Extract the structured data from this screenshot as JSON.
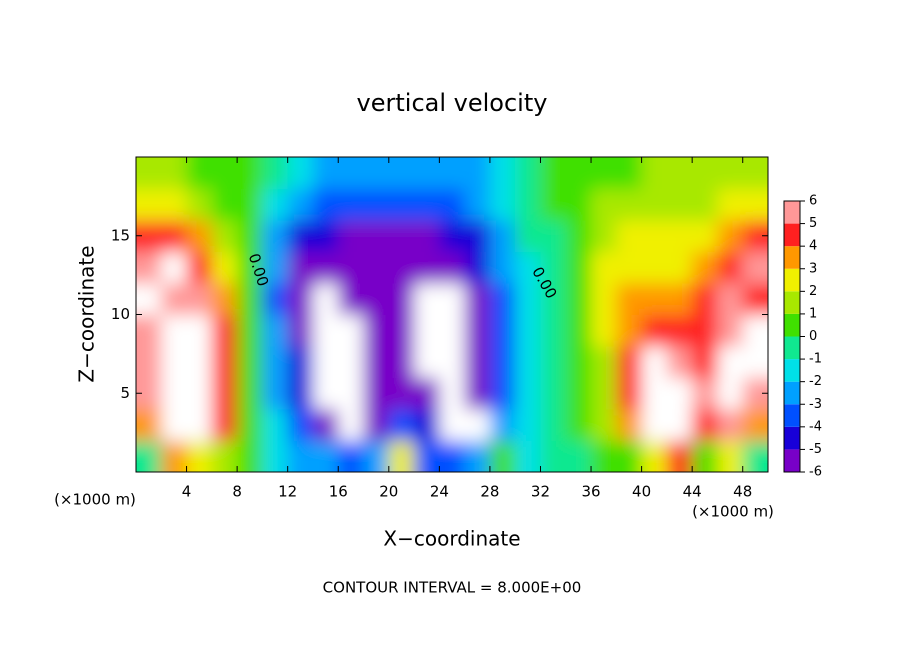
{
  "chart_data": {
    "type": "heatmap",
    "title": "vertical velocity",
    "x_label": "X−coordinate",
    "y_label": "Z−coordinate",
    "x_unit": "(×1000 m)",
    "y_unit": "(×1000 m)",
    "footer": "CONTOUR INTERVAL = 8.000E+00",
    "contour_labels": [
      "0.00",
      "0.00"
    ],
    "xlim": [
      0,
      50
    ],
    "ylim": [
      0,
      20
    ],
    "xticks": [
      4,
      8,
      12,
      16,
      20,
      24,
      28,
      32,
      36,
      40,
      44,
      48
    ],
    "yticks": [
      5,
      10,
      15
    ],
    "x": [
      1,
      3,
      5,
      7,
      9,
      11,
      13,
      15,
      17,
      19,
      21,
      23,
      25,
      27,
      29,
      31,
      33,
      35,
      37,
      39,
      41,
      43,
      45,
      47,
      49
    ],
    "y": [
      1,
      3,
      5,
      7,
      9,
      11,
      13,
      15,
      17,
      19
    ],
    "values": [
      [
        0,
        4,
        3,
        2,
        0.5,
        -1,
        -2,
        -2.5,
        -3,
        -2.5,
        3,
        -3,
        -3,
        -2,
        1,
        -1,
        -0.5,
        0,
        0.5,
        1,
        3,
        5,
        1,
        3,
        0
      ],
      [
        4,
        8,
        8,
        5,
        1,
        -1.5,
        -3,
        -5,
        -8,
        -5,
        -3,
        -4,
        -8,
        -7,
        -2,
        -1,
        -0.5,
        0.5,
        1.5,
        4,
        8,
        8,
        5,
        6,
        4
      ],
      [
        6,
        8,
        8,
        5,
        1,
        -2,
        -4,
        -8,
        -8,
        -5,
        -5,
        -6,
        -7,
        -5,
        -3,
        -1,
        -0.5,
        0.5,
        2,
        5,
        8,
        8,
        6,
        8,
        6
      ],
      [
        6,
        8,
        8,
        5,
        1,
        -2,
        -4,
        -8,
        -8,
        -5,
        -5,
        -8,
        -8,
        -5,
        -3,
        -1.5,
        0,
        0.5,
        2,
        5,
        8,
        6,
        5,
        8,
        8
      ],
      [
        6,
        8,
        7,
        5,
        1,
        -2.5,
        -5,
        -8,
        -8,
        -5,
        -6,
        -8,
        -8,
        -5,
        -3,
        -1.5,
        0,
        1,
        2.5,
        4,
        5,
        5,
        5,
        6,
        8
      ],
      [
        7,
        6,
        6,
        4,
        1,
        -3,
        -5,
        -8,
        -6,
        -5,
        -6,
        -8,
        -8,
        -5,
        -3,
        -1,
        0,
        1,
        3,
        3.5,
        4,
        4,
        5,
        6,
        5
      ],
      [
        6,
        8,
        5,
        3,
        0.5,
        -2.5,
        -5,
        -5,
        -5,
        -5,
        -6,
        -5,
        -5,
        -4.5,
        -2.5,
        -1,
        0,
        1,
        2.5,
        3,
        3,
        3,
        4,
        5,
        6
      ],
      [
        5,
        5,
        4,
        2,
        0.5,
        -2,
        -4,
        -4.5,
        -5,
        -5,
        -5,
        -5,
        -4.5,
        -4,
        -2,
        -0.5,
        0,
        1,
        2,
        2.5,
        2.5,
        2.5,
        3,
        4,
        5
      ],
      [
        3,
        3,
        2,
        1,
        0.5,
        -1,
        -2.5,
        -3,
        -3.5,
        -3.5,
        -3.5,
        -3.5,
        -3,
        -2.5,
        -1.5,
        0,
        0.5,
        1,
        1.5,
        2,
        2,
        2,
        2,
        2.5,
        3
      ],
      [
        1.5,
        1.5,
        1,
        0.5,
        0.5,
        -0.5,
        -1.5,
        -2,
        -2.5,
        -2.5,
        -2.5,
        -2.5,
        -2,
        -2,
        -1,
        0,
        0.5,
        0.5,
        1,
        1,
        1.5,
        1.5,
        1.5,
        1.5,
        2
      ]
    ],
    "colorbar": {
      "ticks": [
        -6,
        -5,
        -4,
        -3,
        -2,
        -1,
        0,
        1,
        2,
        3,
        4,
        5,
        6
      ],
      "colors": [
        "#7800c8",
        "#1800d8",
        "#0050ff",
        "#00a0ff",
        "#00e0e8",
        "#10e890",
        "#40e000",
        "#a8e800",
        "#f0f000",
        "#ff9800",
        "#ff2020",
        "#ff9898"
      ],
      "out_of_range_color": "#ffffff"
    }
  }
}
